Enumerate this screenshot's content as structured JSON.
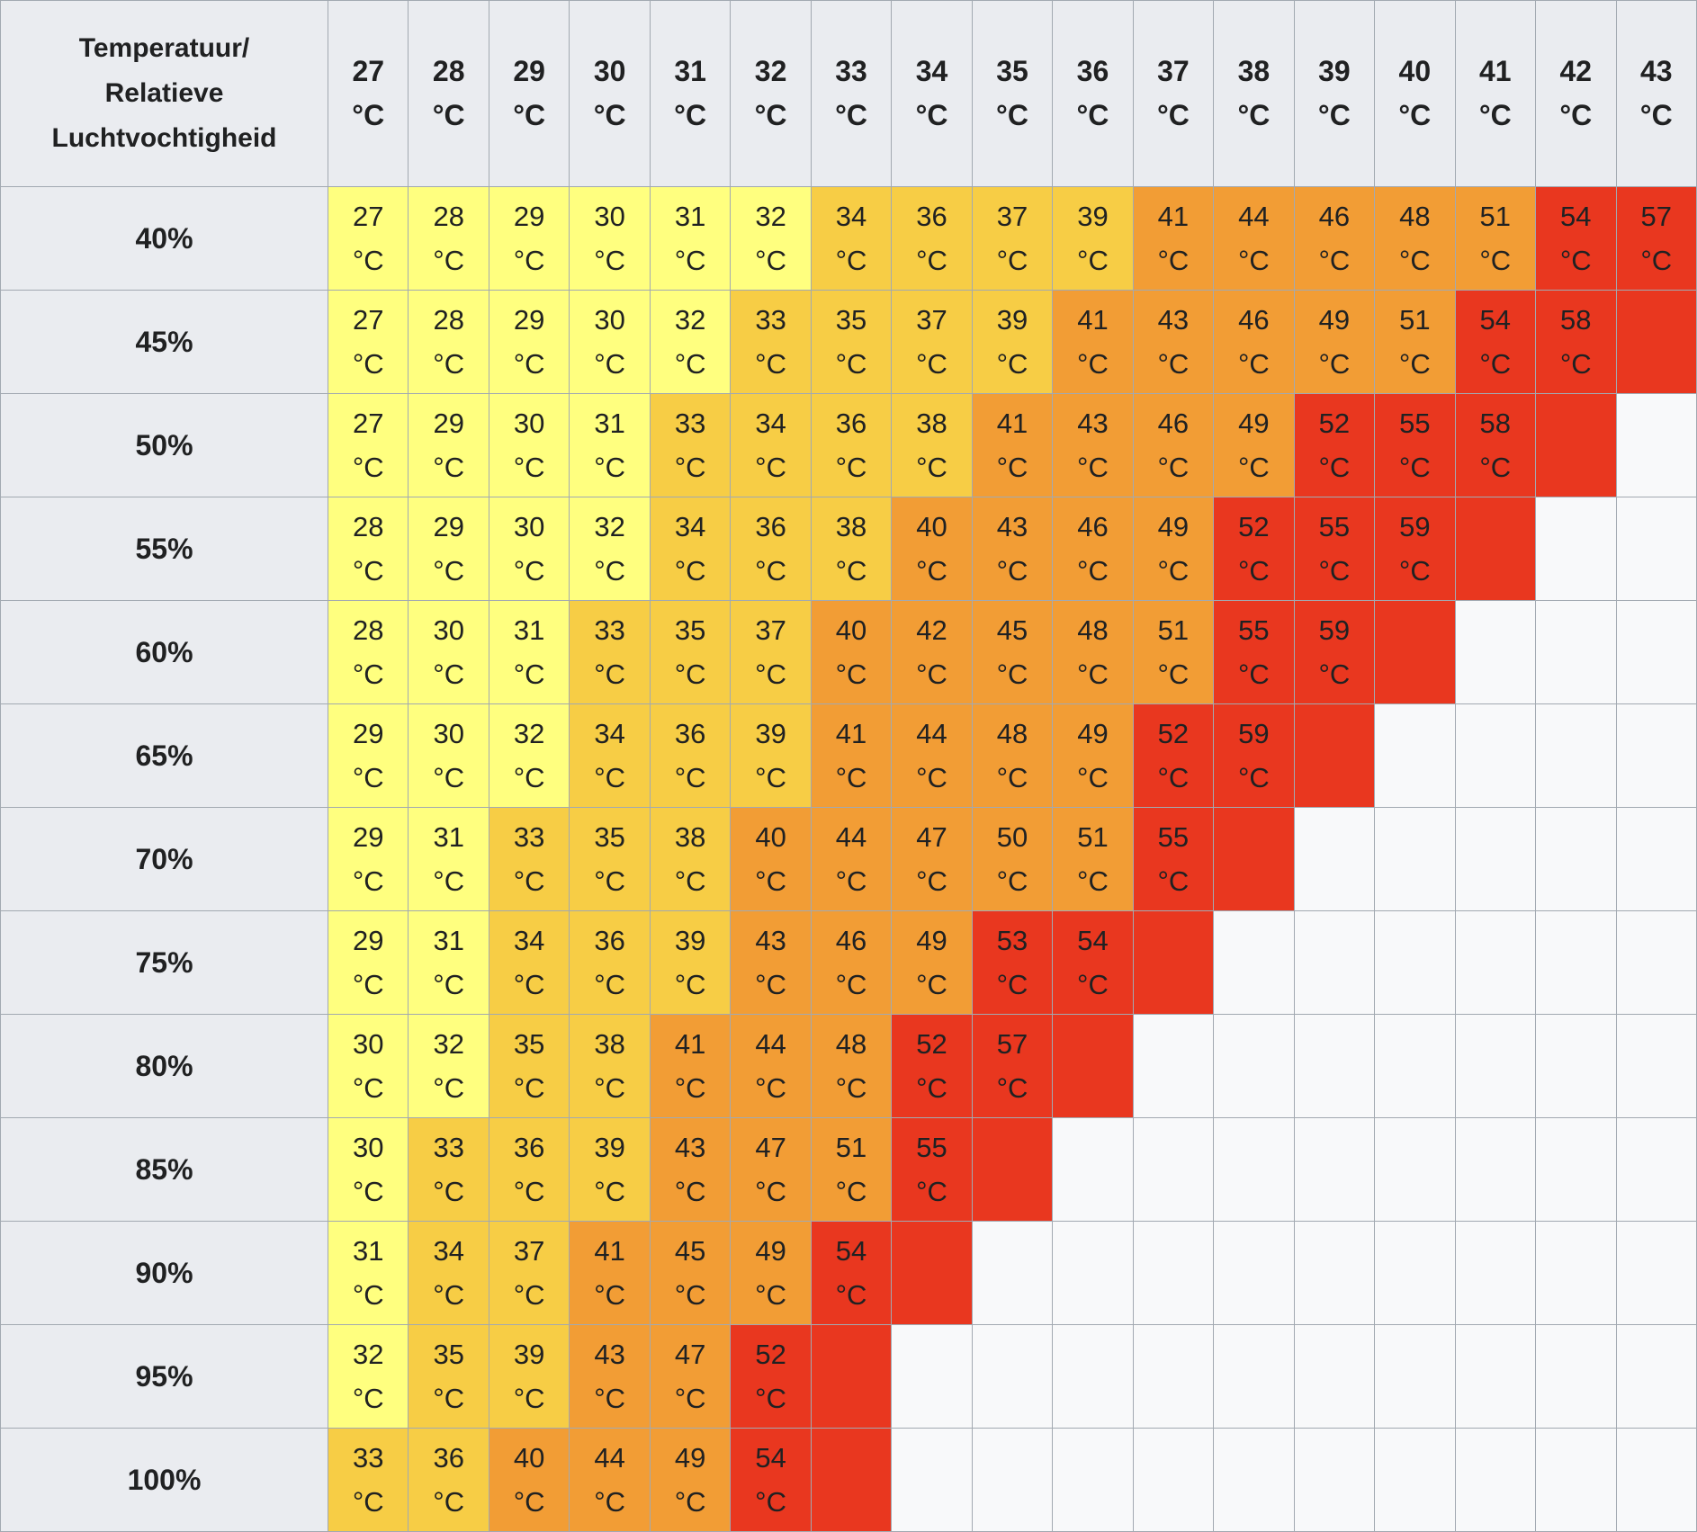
{
  "corner_header": {
    "line1": "Temperatuur/",
    "line2": "Relatieve",
    "line3": "Luchtvochtigheid"
  },
  "unit": "°C",
  "colors": {
    "header_bg": "#eaecf0",
    "empty": "#f8f9fa",
    "yellow": "#ffff7f",
    "amber": "#f7cd45",
    "orange": "#f29d35",
    "red": "#e9371f"
  },
  "temperatures": [
    "27",
    "28",
    "29",
    "30",
    "31",
    "32",
    "33",
    "34",
    "35",
    "36",
    "37",
    "38",
    "39",
    "40",
    "41",
    "42",
    "43"
  ],
  "rows": [
    {
      "humidity": "40%",
      "values": [
        "27",
        "28",
        "29",
        "30",
        "31",
        "32",
        "34",
        "36",
        "37",
        "39",
        "41",
        "44",
        "46",
        "48",
        "51",
        "54",
        "57"
      ],
      "levels": [
        "yellow",
        "yellow",
        "yellow",
        "yellow",
        "yellow",
        "yellow",
        "amber",
        "amber",
        "amber",
        "amber",
        "orange",
        "orange",
        "orange",
        "orange",
        "orange",
        "red",
        "red"
      ]
    },
    {
      "humidity": "45%",
      "values": [
        "27",
        "28",
        "29",
        "30",
        "32",
        "33",
        "35",
        "37",
        "39",
        "41",
        "43",
        "46",
        "49",
        "51",
        "54",
        "58",
        ""
      ],
      "levels": [
        "yellow",
        "yellow",
        "yellow",
        "yellow",
        "yellow",
        "amber",
        "amber",
        "amber",
        "amber",
        "orange",
        "orange",
        "orange",
        "orange",
        "orange",
        "red",
        "red",
        "red"
      ]
    },
    {
      "humidity": "50%",
      "values": [
        "27",
        "29",
        "30",
        "31",
        "33",
        "34",
        "36",
        "38",
        "41",
        "43",
        "46",
        "49",
        "52",
        "55",
        "58",
        "",
        ""
      ],
      "levels": [
        "yellow",
        "yellow",
        "yellow",
        "yellow",
        "amber",
        "amber",
        "amber",
        "amber",
        "orange",
        "orange",
        "orange",
        "orange",
        "red",
        "red",
        "red",
        "red",
        "empty"
      ]
    },
    {
      "humidity": "55%",
      "values": [
        "28",
        "29",
        "30",
        "32",
        "34",
        "36",
        "38",
        "40",
        "43",
        "46",
        "49",
        "52",
        "55",
        "59",
        "",
        "",
        ""
      ],
      "levels": [
        "yellow",
        "yellow",
        "yellow",
        "yellow",
        "amber",
        "amber",
        "amber",
        "orange",
        "orange",
        "orange",
        "orange",
        "red",
        "red",
        "red",
        "red",
        "empty",
        "empty"
      ]
    },
    {
      "humidity": "60%",
      "values": [
        "28",
        "30",
        "31",
        "33",
        "35",
        "37",
        "40",
        "42",
        "45",
        "48",
        "51",
        "55",
        "59",
        "",
        "",
        "",
        ""
      ],
      "levels": [
        "yellow",
        "yellow",
        "yellow",
        "amber",
        "amber",
        "amber",
        "orange",
        "orange",
        "orange",
        "orange",
        "orange",
        "red",
        "red",
        "red",
        "empty",
        "empty",
        "empty"
      ]
    },
    {
      "humidity": "65%",
      "values": [
        "29",
        "30",
        "32",
        "34",
        "36",
        "39",
        "41",
        "44",
        "48",
        "49",
        "52",
        "59",
        "",
        "",
        "",
        "",
        ""
      ],
      "levels": [
        "yellow",
        "yellow",
        "yellow",
        "amber",
        "amber",
        "amber",
        "orange",
        "orange",
        "orange",
        "orange",
        "red",
        "red",
        "red",
        "empty",
        "empty",
        "empty",
        "empty"
      ]
    },
    {
      "humidity": "70%",
      "values": [
        "29",
        "31",
        "33",
        "35",
        "38",
        "40",
        "44",
        "47",
        "50",
        "51",
        "55",
        "",
        "",
        "",
        "",
        "",
        ""
      ],
      "levels": [
        "yellow",
        "yellow",
        "amber",
        "amber",
        "amber",
        "orange",
        "orange",
        "orange",
        "orange",
        "orange",
        "red",
        "red",
        "empty",
        "empty",
        "empty",
        "empty",
        "empty"
      ]
    },
    {
      "humidity": "75%",
      "values": [
        "29",
        "31",
        "34",
        "36",
        "39",
        "43",
        "46",
        "49",
        "53",
        "54",
        "",
        "",
        "",
        "",
        "",
        "",
        ""
      ],
      "levels": [
        "yellow",
        "yellow",
        "amber",
        "amber",
        "amber",
        "orange",
        "orange",
        "orange",
        "red",
        "red",
        "red",
        "empty",
        "empty",
        "empty",
        "empty",
        "empty",
        "empty"
      ]
    },
    {
      "humidity": "80%",
      "values": [
        "30",
        "32",
        "35",
        "38",
        "41",
        "44",
        "48",
        "52",
        "57",
        "",
        "",
        "",
        "",
        "",
        "",
        "",
        ""
      ],
      "levels": [
        "yellow",
        "yellow",
        "amber",
        "amber",
        "orange",
        "orange",
        "orange",
        "red",
        "red",
        "red",
        "empty",
        "empty",
        "empty",
        "empty",
        "empty",
        "empty",
        "empty"
      ]
    },
    {
      "humidity": "85%",
      "values": [
        "30",
        "33",
        "36",
        "39",
        "43",
        "47",
        "51",
        "55",
        "",
        "",
        "",
        "",
        "",
        "",
        "",
        "",
        ""
      ],
      "levels": [
        "yellow",
        "amber",
        "amber",
        "amber",
        "orange",
        "orange",
        "orange",
        "red",
        "red",
        "empty",
        "empty",
        "empty",
        "empty",
        "empty",
        "empty",
        "empty",
        "empty"
      ]
    },
    {
      "humidity": "90%",
      "values": [
        "31",
        "34",
        "37",
        "41",
        "45",
        "49",
        "54",
        "",
        "",
        "",
        "",
        "",
        "",
        "",
        "",
        "",
        ""
      ],
      "levels": [
        "yellow",
        "amber",
        "amber",
        "orange",
        "orange",
        "orange",
        "red",
        "red",
        "empty",
        "empty",
        "empty",
        "empty",
        "empty",
        "empty",
        "empty",
        "empty",
        "empty"
      ]
    },
    {
      "humidity": "95%",
      "values": [
        "32",
        "35",
        "39",
        "43",
        "47",
        "52",
        "",
        "",
        "",
        "",
        "",
        "",
        "",
        "",
        "",
        "",
        ""
      ],
      "levels": [
        "yellow",
        "amber",
        "amber",
        "orange",
        "orange",
        "red",
        "red",
        "empty",
        "empty",
        "empty",
        "empty",
        "empty",
        "empty",
        "empty",
        "empty",
        "empty",
        "empty"
      ]
    },
    {
      "humidity": "100%",
      "values": [
        "33",
        "36",
        "40",
        "44",
        "49",
        "54",
        "",
        "",
        "",
        "",
        "",
        "",
        "",
        "",
        "",
        "",
        ""
      ],
      "levels": [
        "amber",
        "amber",
        "orange",
        "orange",
        "orange",
        "red",
        "red",
        "empty",
        "empty",
        "empty",
        "empty",
        "empty",
        "empty",
        "empty",
        "empty",
        "empty",
        "empty"
      ]
    }
  ]
}
